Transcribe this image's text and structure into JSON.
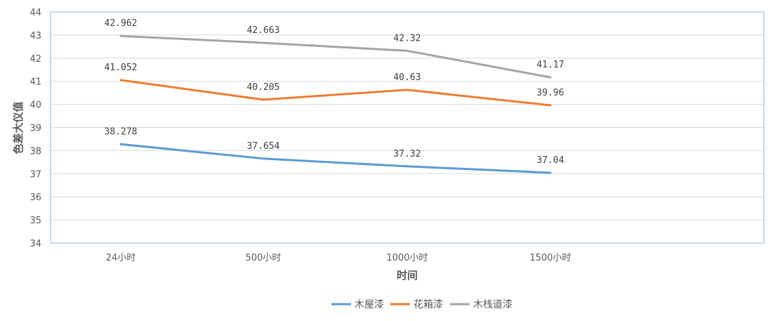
{
  "chart_data": {
    "type": "line",
    "categories": [
      "24小时",
      "500小时",
      "1000小时",
      "1500小时"
    ],
    "series": [
      {
        "name": "木屋漆",
        "values": [
          38.278,
          37.654,
          37.32,
          37.04
        ],
        "labels": [
          "38.278",
          "37.654",
          "37.32",
          "37.04"
        ],
        "color": "#5b9bd5"
      },
      {
        "name": "花箱漆",
        "values": [
          41.052,
          40.205,
          40.63,
          39.96
        ],
        "labels": [
          "41.052",
          "40.205",
          "40.63",
          "39.96"
        ],
        "color": "#ed7d31"
      },
      {
        "name": "木栈道漆",
        "values": [
          42.962,
          42.663,
          42.32,
          41.17
        ],
        "labels": [
          "42.962",
          "42.663",
          "42.32",
          "41.17"
        ],
        "color": "#a5a5a5"
      }
    ],
    "xlabel": "时间",
    "ylabel": "色差大仪值",
    "ylim": [
      34,
      44
    ],
    "yticks": [
      "34",
      "35",
      "36",
      "37",
      "38",
      "39",
      "40",
      "41",
      "42",
      "43",
      "44"
    ],
    "grid": true,
    "legend": "bottom"
  }
}
